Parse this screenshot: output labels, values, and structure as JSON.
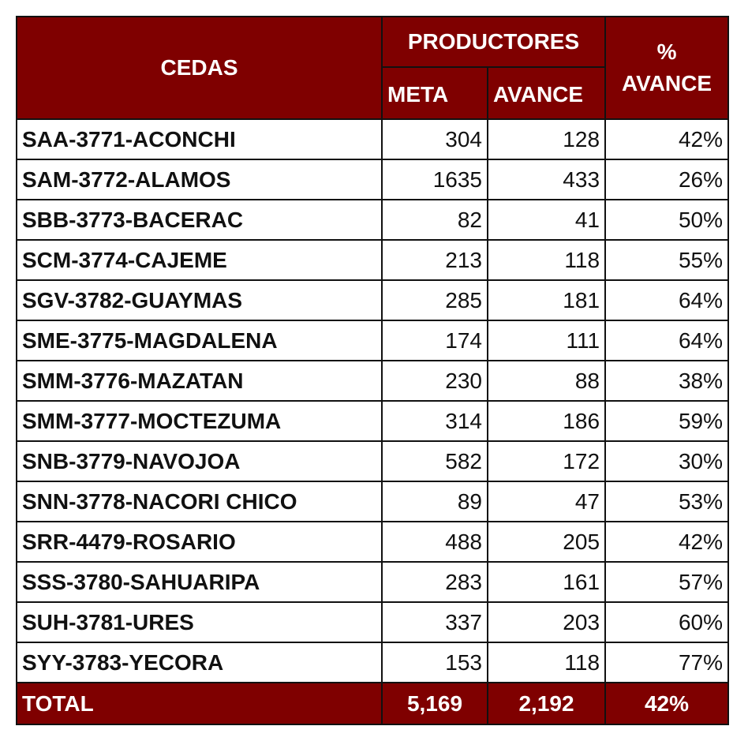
{
  "chart_data": {
    "type": "table",
    "headers": {
      "cedas": "CEDAS",
      "productores": "PRODUCTORES",
      "meta": "META",
      "avance": "AVANCE",
      "pct_line1": "%",
      "pct_line2": "AVANCE"
    },
    "rows": [
      {
        "cedas": "SAA-3771-ACONCHI",
        "meta": "304",
        "avance": "128",
        "pct": "42%"
      },
      {
        "cedas": "SAM-3772-ALAMOS",
        "meta": "1635",
        "avance": "433",
        "pct": "26%"
      },
      {
        "cedas": "SBB-3773-BACERAC",
        "meta": "82",
        "avance": "41",
        "pct": "50%"
      },
      {
        "cedas": "SCM-3774-CAJEME",
        "meta": "213",
        "avance": "118",
        "pct": "55%"
      },
      {
        "cedas": "SGV-3782-GUAYMAS",
        "meta": "285",
        "avance": "181",
        "pct": "64%"
      },
      {
        "cedas": "SME-3775-MAGDALENA",
        "meta": "174",
        "avance": "111",
        "pct": "64%"
      },
      {
        "cedas": "SMM-3776-MAZATAN",
        "meta": "230",
        "avance": "88",
        "pct": "38%"
      },
      {
        "cedas": "SMM-3777-MOCTEZUMA",
        "meta": "314",
        "avance": "186",
        "pct": "59%"
      },
      {
        "cedas": "SNB-3779-NAVOJOA",
        "meta": "582",
        "avance": "172",
        "pct": "30%"
      },
      {
        "cedas": "SNN-3778-NACORI CHICO",
        "meta": "89",
        "avance": "47",
        "pct": "53%"
      },
      {
        "cedas": "SRR-4479-ROSARIO",
        "meta": "488",
        "avance": "205",
        "pct": "42%"
      },
      {
        "cedas": "SSS-3780-SAHUARIPA",
        "meta": "283",
        "avance": "161",
        "pct": "57%"
      },
      {
        "cedas": "SUH-3781-URES",
        "meta": "337",
        "avance": "203",
        "pct": "60%"
      },
      {
        "cedas": "SYY-3783-YECORA",
        "meta": "153",
        "avance": "118",
        "pct": "77%"
      }
    ],
    "total": {
      "label": "TOTAL",
      "meta": "5,169",
      "avance": "2,192",
      "pct": "42%"
    },
    "colors": {
      "header_bg": "#7f0000",
      "header_text": "#ffffff"
    }
  }
}
